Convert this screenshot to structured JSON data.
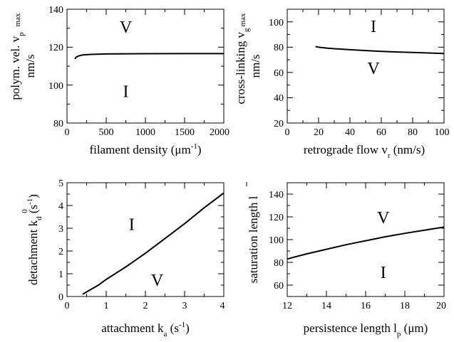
{
  "chart_data": [
    {
      "type": "line",
      "id": "a",
      "xlim": [
        0,
        2000
      ],
      "ylim": [
        80,
        140
      ],
      "xticks": [
        "0",
        "500",
        "1000",
        "1500",
        "2000"
      ],
      "yticks": [
        "80",
        "100",
        "120",
        "140"
      ],
      "xlabel": "filament density (μm",
      "xlabel_sup": "-1",
      "xlabel_end": ")",
      "ylabel_line1": "polym. vel.  v",
      "ylabel_sub": "p",
      "ylabel_sup": "max",
      "ylabel_line2": "nm/s",
      "series": [
        {
          "x": [
            100,
            120,
            150,
            200,
            300,
            500,
            800,
            1000,
            1500,
            2000
          ],
          "y": [
            113.8,
            114.8,
            115.4,
            115.9,
            116.2,
            116.4,
            116.5,
            116.55,
            116.6,
            116.6
          ]
        }
      ],
      "regions": [
        {
          "label": "V",
          "x": 750,
          "y": 131
        },
        {
          "label": "I",
          "x": 750,
          "y": 97
        }
      ]
    },
    {
      "type": "line",
      "id": "b",
      "xlim": [
        0,
        100
      ],
      "ylim": [
        20,
        110
      ],
      "xticks": [
        "0",
        "20",
        "40",
        "60",
        "80",
        "100"
      ],
      "yticks": [
        "20",
        "40",
        "60",
        "80",
        "100"
      ],
      "xlabel": "retrograde flow v",
      "xlabel_sub": "r",
      "xlabel_end": " (nm/s)",
      "ylabel_line1": "cross-linking v",
      "ylabel_sub": "g",
      "ylabel_sup": "max",
      "ylabel_line2": "nm/s",
      "series": [
        {
          "x": [
            18,
            20,
            25,
            30,
            40,
            50,
            60,
            70,
            80,
            90,
            100
          ],
          "y": [
            80.5,
            80,
            79.3,
            78.8,
            78,
            77.3,
            76.7,
            76.2,
            75.8,
            75.4,
            75
          ]
        }
      ],
      "regions": [
        {
          "label": "I",
          "x": 55,
          "y": 97
        },
        {
          "label": "V",
          "x": 55,
          "y": 64
        }
      ]
    },
    {
      "type": "line",
      "id": "c",
      "xlim": [
        0,
        4
      ],
      "ylim": [
        0,
        5
      ],
      "xticks": [
        "0",
        "1",
        "2",
        "3",
        "4"
      ],
      "yticks": [
        "0",
        "1",
        "2",
        "3",
        "4",
        "5"
      ],
      "xlabel": "attachment k",
      "xlabel_sub": "a",
      "xlabel_end": " (s",
      "xlabel_sup": "-1",
      "xlabel_end2": ")",
      "ylabel": "detachment k",
      "ylabel_sub": "d",
      "ylabel_sup": "0",
      "ylabel_end": " (s",
      "ylabel_sup2": "-1",
      "ylabel_end2": ")",
      "series": [
        {
          "x": [
            0.4,
            0.6,
            0.8,
            1.0,
            1.5,
            2.0,
            2.5,
            3.0,
            3.5,
            4.0
          ],
          "y": [
            0.1,
            0.3,
            0.5,
            0.75,
            1.3,
            1.9,
            2.55,
            3.2,
            3.9,
            4.55
          ]
        }
      ],
      "regions": [
        {
          "label": "I",
          "x": 1.65,
          "y": 3.2
        },
        {
          "label": "V",
          "x": 2.3,
          "y": 0.75
        }
      ]
    },
    {
      "type": "line",
      "id": "d",
      "xlim": [
        12,
        20
      ],
      "ylim": [
        50,
        150
      ],
      "xticks": [
        "12",
        "14",
        "16",
        "18",
        "20"
      ],
      "yticks": [
        "60",
        "80",
        "100",
        "120",
        "140"
      ],
      "xlabel": "persistence length l",
      "xlabel_sub": "p",
      "xlabel_end": " (μm)",
      "ylabel": "saturation length l",
      "series": [
        {
          "x": [
            12,
            13,
            14,
            15,
            16,
            17,
            18,
            19,
            20
          ],
          "y": [
            83,
            87.5,
            91.5,
            95.5,
            99,
            102.5,
            105.5,
            108.3,
            111
          ]
        }
      ],
      "regions": [
        {
          "label": "V",
          "x": 16.9,
          "y": 120
        },
        {
          "label": "I",
          "x": 16.9,
          "y": 72
        }
      ]
    }
  ]
}
